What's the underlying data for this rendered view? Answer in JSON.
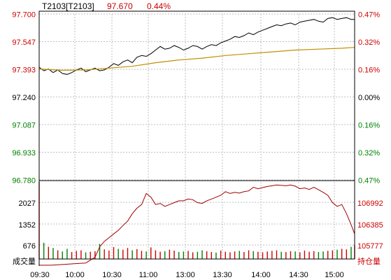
{
  "header": {
    "symbol": "T2103[T2103]",
    "last_price": "97.670",
    "change_pct": "0.44%"
  },
  "colors": {
    "up": "#cc0000",
    "down": "#008000",
    "neutral": "#000000",
    "price_line": "#000000",
    "avg_line": "#c09000",
    "open_interest_line": "#a00000",
    "grid": "#bfbfbf",
    "axis": "#000000"
  },
  "chart_data": [
    {
      "type": "line",
      "panel": "price",
      "title": "",
      "ylim": [
        96.78,
        97.7
      ],
      "y_tick_labels_left": [
        "97.700",
        "97.547",
        "97.393",
        "97.240",
        "97.087",
        "96.933",
        "96.780"
      ],
      "y_tick_labels_right": [
        "0.47%",
        "0.32%",
        "0.16%",
        "0.00%",
        "0.16%",
        "0.32%",
        "0.47%"
      ],
      "reference_price": 97.24,
      "grid": true,
      "series": [
        {
          "key": "price",
          "x": [
            0,
            4,
            8,
            12,
            16,
            20,
            24,
            28,
            32,
            36,
            40,
            44,
            48,
            52,
            56,
            60,
            64,
            68,
            72,
            76,
            80,
            84,
            88,
            92,
            96,
            100,
            104,
            108,
            112,
            116,
            120,
            124,
            128,
            132,
            136,
            140,
            144,
            148,
            152,
            156,
            160,
            164,
            168,
            172,
            176,
            180,
            184,
            188,
            192,
            196,
            200,
            204,
            208,
            212,
            216,
            220,
            224,
            228,
            232,
            236,
            240,
            244,
            248,
            252,
            256,
            260,
            264,
            268,
            271
          ],
          "values": [
            97.405,
            97.385,
            97.395,
            97.375,
            97.39,
            97.37,
            97.365,
            97.375,
            97.39,
            97.4,
            97.38,
            97.39,
            97.4,
            97.385,
            97.39,
            97.405,
            97.425,
            97.415,
            97.435,
            97.445,
            97.43,
            97.46,
            97.47,
            97.465,
            97.48,
            97.5,
            97.52,
            97.505,
            97.51,
            97.525,
            97.515,
            97.5,
            97.51,
            97.525,
            97.52,
            97.505,
            97.52,
            97.53,
            97.525,
            97.54,
            97.55,
            97.56,
            97.575,
            97.57,
            97.58,
            97.595,
            97.585,
            97.6,
            97.61,
            97.62,
            97.63,
            97.64,
            97.635,
            97.645,
            97.65,
            97.64,
            97.655,
            97.66,
            97.665,
            97.67,
            97.66,
            97.655,
            97.675,
            97.68,
            97.67,
            97.675,
            97.68,
            97.67,
            97.67
          ]
        },
        {
          "key": "average",
          "x": [
            0,
            20,
            40,
            60,
            80,
            100,
            120,
            140,
            160,
            180,
            200,
            220,
            240,
            260,
            271
          ],
          "values": [
            97.395,
            97.388,
            97.39,
            97.4,
            97.41,
            97.43,
            97.445,
            97.455,
            97.47,
            97.48,
            97.49,
            97.5,
            97.505,
            97.51,
            97.515
          ]
        }
      ]
    },
    {
      "type": "bar",
      "panel": "volume",
      "title": "",
      "ylabel": "成交量",
      "y2label": "持仓量",
      "grid": true,
      "x_tick_labels": [
        "09:30",
        "10:00",
        "10:30",
        "11:00",
        "13:00",
        "13:30",
        "14:00",
        "14:30",
        "15:00"
      ],
      "y_tick_labels_left": [
        "2027",
        "1352",
        "676"
      ],
      "y_tick_labels_right": [
        "106992",
        "106385",
        "105777"
      ],
      "ylim": [
        0,
        2700
      ],
      "y2lim": [
        105470,
        107600
      ],
      "series": [
        {
          "key": "volume",
          "x": [
            0,
            4,
            8,
            12,
            16,
            20,
            24,
            28,
            32,
            36,
            40,
            44,
            48,
            52,
            56,
            60,
            64,
            68,
            72,
            76,
            80,
            84,
            88,
            92,
            96,
            100,
            104,
            108,
            112,
            116,
            120,
            124,
            128,
            132,
            136,
            140,
            144,
            148,
            152,
            156,
            160,
            164,
            168,
            172,
            176,
            180,
            184,
            188,
            192,
            196,
            200,
            204,
            208,
            212,
            216,
            220,
            224,
            228,
            232,
            236,
            240,
            244,
            248,
            252,
            256,
            260,
            264,
            268,
            271
          ],
          "values": [
            2650,
            560,
            420,
            380,
            300,
            260,
            350,
            240,
            280,
            300,
            230,
            250,
            270,
            520,
            330,
            290,
            410,
            350,
            320,
            380,
            300,
            340,
            280,
            260,
            400,
            300,
            250,
            270,
            320,
            290,
            240,
            260,
            280,
            230,
            250,
            300,
            270,
            240,
            220,
            290,
            250,
            230,
            260,
            280,
            240,
            300,
            270,
            250,
            230,
            260,
            280,
            300,
            250,
            240,
            270,
            260,
            230,
            290,
            250,
            270,
            240,
            260,
            280,
            300,
            320,
            350,
            330,
            420,
            480
          ]
        },
        {
          "key": "open_interest",
          "x": [
            0,
            10,
            20,
            30,
            40,
            48,
            52,
            56,
            60,
            64,
            68,
            72,
            76,
            80,
            84,
            88,
            92,
            96,
            100,
            104,
            108,
            112,
            116,
            120,
            124,
            128,
            132,
            136,
            140,
            144,
            148,
            152,
            156,
            160,
            164,
            168,
            172,
            176,
            180,
            184,
            188,
            192,
            196,
            200,
            204,
            208,
            212,
            216,
            220,
            224,
            228,
            232,
            236,
            240,
            244,
            248,
            252,
            256,
            260,
            264,
            268,
            271
          ],
          "values": [
            105300,
            105300,
            105320,
            105340,
            105360,
            105520,
            105800,
            105950,
            106050,
            106150,
            106250,
            106380,
            106500,
            106700,
            106850,
            106950,
            107250,
            107150,
            106950,
            106980,
            106900,
            106950,
            107000,
            107050,
            107050,
            107100,
            107080,
            107000,
            106980,
            107050,
            107100,
            107150,
            107200,
            107300,
            107250,
            107280,
            107260,
            107300,
            107320,
            107420,
            107380,
            107410,
            107440,
            107460,
            107480,
            107470,
            107460,
            107480,
            107450,
            107380,
            107400,
            107360,
            107420,
            107350,
            107280,
            107200,
            107000,
            106900,
            106950,
            106700,
            106400,
            106150
          ]
        }
      ]
    }
  ]
}
